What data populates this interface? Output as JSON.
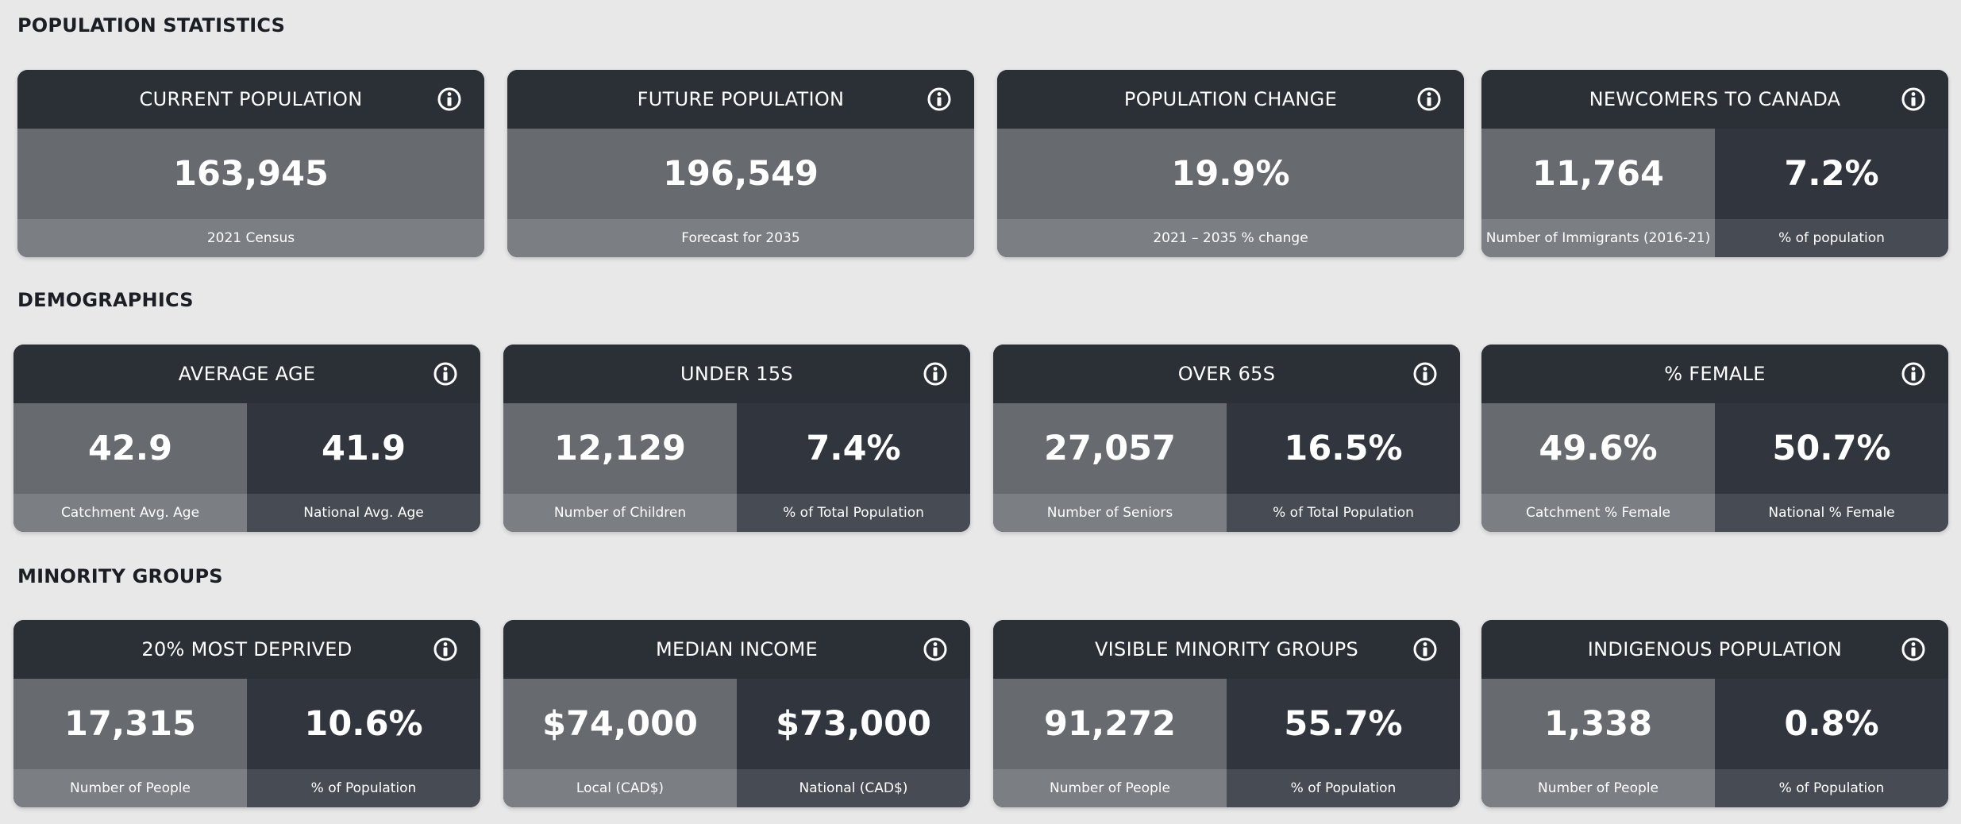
{
  "sections": [
    {
      "title": "POPULATION STATISTICS",
      "cards": [
        {
          "title": "CURRENT POPULATION",
          "cols": [
            {
              "value": "163,945",
              "caption": "2021 Census"
            }
          ]
        },
        {
          "title": "FUTURE POPULATION",
          "cols": [
            {
              "value": "196,549",
              "caption": "Forecast for 2035"
            }
          ]
        },
        {
          "title": "POPULATION CHANGE",
          "cols": [
            {
              "value": "19.9%",
              "caption": "2021 – 2035 % change"
            }
          ]
        },
        {
          "title": "NEWCOMERS TO CANADA",
          "cols": [
            {
              "value": "11,764",
              "caption": "Number of Immigrants (2016-21)"
            },
            {
              "value": "7.2%",
              "caption": "% of population"
            }
          ]
        }
      ]
    },
    {
      "title": "DEMOGRAPHICS",
      "cards": [
        {
          "title": "AVERAGE AGE",
          "cols": [
            {
              "value": "42.9",
              "caption": "Catchment Avg. Age"
            },
            {
              "value": "41.9",
              "caption": "National Avg. Age"
            }
          ]
        },
        {
          "title": "UNDER 15S",
          "cols": [
            {
              "value": "12,129",
              "caption": "Number of Children"
            },
            {
              "value": "7.4%",
              "caption": "% of Total Population"
            }
          ]
        },
        {
          "title": "OVER 65S",
          "cols": [
            {
              "value": "27,057",
              "caption": "Number of Seniors"
            },
            {
              "value": "16.5%",
              "caption": "% of Total Population"
            }
          ]
        },
        {
          "title": "% FEMALE",
          "cols": [
            {
              "value": "49.6%",
              "caption": "Catchment % Female"
            },
            {
              "value": "50.7%",
              "caption": "National % Female"
            }
          ]
        }
      ]
    },
    {
      "title": "MINORITY GROUPS",
      "cards": [
        {
          "title": "20% MOST DEPRIVED",
          "cols": [
            {
              "value": "17,315",
              "caption": "Number of People"
            },
            {
              "value": "10.6%",
              "caption": "% of Population"
            }
          ]
        },
        {
          "title": "MEDIAN INCOME",
          "cols": [
            {
              "value": "$74,000",
              "caption": "Local (CAD$)"
            },
            {
              "value": "$73,000",
              "caption": "National (CAD$)"
            }
          ]
        },
        {
          "title": "VISIBLE MINORITY GROUPS",
          "cols": [
            {
              "value": "91,272",
              "caption": "Number of People"
            },
            {
              "value": "55.7%",
              "caption": "% of Population"
            }
          ]
        },
        {
          "title": "INDIGENOUS POPULATION",
          "cols": [
            {
              "value": "1,338",
              "caption": "Number of People"
            },
            {
              "value": "0.8%",
              "caption": "% of Population"
            }
          ]
        }
      ]
    }
  ],
  "icons": {
    "card_info": "info-icon"
  },
  "colors": {
    "header": "#2b2f36",
    "value_light": "#676a6f",
    "value_dark": "#31363e",
    "caption_light": "#7b7e83",
    "caption_dark": "#474b53"
  }
}
